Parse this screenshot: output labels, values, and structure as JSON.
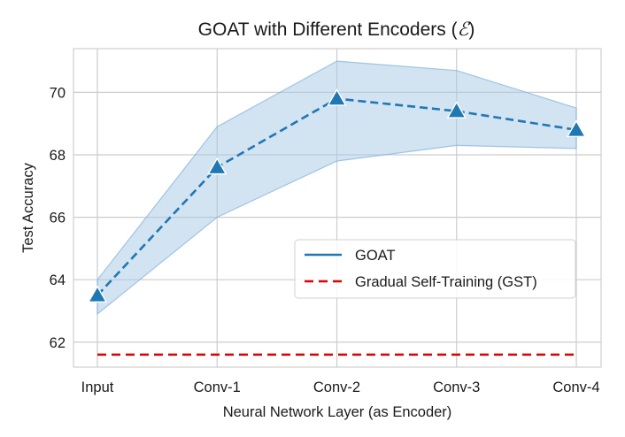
{
  "chart_data": {
    "type": "line",
    "title": "GOAT with Different Encoders (",
    "title_symbol": "ℰ",
    "title_suffix": ")",
    "xlabel": "Neural Network Layer (as Encoder)",
    "ylabel": "Test Accuracy",
    "categories": [
      "Input",
      "Conv-1",
      "Conv-2",
      "Conv-3",
      "Conv-4"
    ],
    "ylim": [
      61.2,
      71.4
    ],
    "yticks": [
      62,
      64,
      66,
      68,
      70
    ],
    "grid": true,
    "legend_position": "center-right",
    "series": [
      {
        "name": "GOAT",
        "style": "dashed-line-with-triangle-markers",
        "color": "#1f77b4",
        "values": [
          63.5,
          67.6,
          69.8,
          69.4,
          68.8
        ],
        "band_lower": [
          62.9,
          66.0,
          67.8,
          68.3,
          68.2
        ],
        "band_upper": [
          64.0,
          68.9,
          71.0,
          70.7,
          69.5
        ],
        "band_color": "#a6c8e4"
      },
      {
        "name": "Gradual Self-Training (GST)",
        "style": "dashed",
        "color": "#e00000",
        "values": [
          61.6,
          61.6,
          61.6,
          61.6,
          61.6
        ]
      }
    ]
  }
}
